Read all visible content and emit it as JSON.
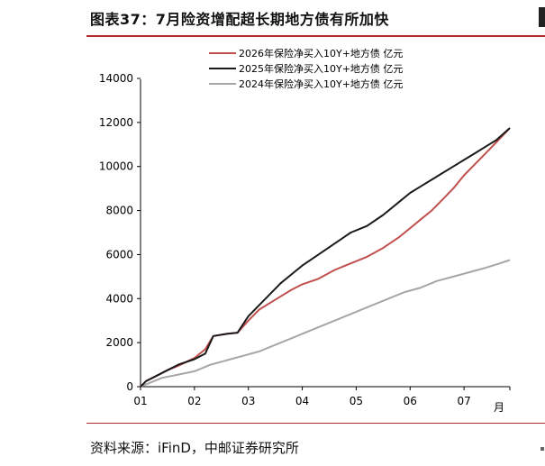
{
  "header": {
    "title": "图表37：7月险资增配超长期地方债有所加快"
  },
  "footer": {
    "source": "资料来源：iFinD，中邮证券研究所"
  },
  "chart_data": {
    "type": "line",
    "title": "",
    "xlabel": "月",
    "ylabel": "",
    "xlim": [
      1,
      7.85
    ],
    "ylim": [
      0,
      14000
    ],
    "xticks": [
      1,
      2,
      3,
      4,
      5,
      6,
      7
    ],
    "xtick_labels": [
      "01",
      "02",
      "03",
      "04",
      "05",
      "06",
      "07"
    ],
    "yticks": [
      0,
      2000,
      4000,
      6000,
      8000,
      10000,
      12000,
      14000
    ],
    "ytick_labels": [
      "0",
      "2000",
      "4000",
      "6000",
      "8000",
      "10000",
      "12000",
      "14000"
    ],
    "legend_position": "top-center",
    "grid": false,
    "series": [
      {
        "name": "2026年保险净买入10Y+地方债 亿元",
        "color": "#c0504d",
        "x": [
          1.0,
          1.1,
          1.3,
          1.5,
          1.7,
          2.0,
          2.2,
          2.35,
          2.6,
          2.8,
          3.0,
          3.2,
          3.4,
          3.6,
          3.8,
          4.0,
          4.3,
          4.6,
          4.9,
          5.2,
          5.5,
          5.8,
          6.0,
          6.2,
          6.4,
          6.6,
          6.8,
          7.0,
          7.2,
          7.4,
          7.6,
          7.85
        ],
        "y": [
          0,
          250,
          500,
          750,
          950,
          1300,
          1700,
          2300,
          2400,
          2450,
          3000,
          3500,
          3800,
          4100,
          4400,
          4650,
          4900,
          5300,
          5600,
          5900,
          6300,
          6800,
          7200,
          7600,
          8000,
          8500,
          9000,
          9600,
          10100,
          10600,
          11100,
          11750
        ]
      },
      {
        "name": "2025年保险净买入10Y+地方债 亿元",
        "color": "#1a1a1a",
        "x": [
          1.0,
          1.1,
          1.3,
          1.5,
          1.7,
          2.0,
          2.2,
          2.35,
          2.6,
          2.8,
          3.0,
          3.2,
          3.4,
          3.6,
          3.8,
          4.0,
          4.3,
          4.6,
          4.9,
          5.2,
          5.5,
          5.8,
          6.0,
          6.2,
          6.4,
          6.6,
          6.8,
          7.0,
          7.2,
          7.4,
          7.6,
          7.85
        ],
        "y": [
          0,
          250,
          500,
          750,
          1000,
          1250,
          1500,
          2300,
          2400,
          2450,
          3200,
          3700,
          4200,
          4700,
          5100,
          5500,
          6000,
          6500,
          7000,
          7300,
          7800,
          8400,
          8800,
          9100,
          9400,
          9700,
          10000,
          10300,
          10600,
          10900,
          11200,
          11750
        ]
      },
      {
        "name": "2024年保险净买入10Y+地方债 亿元",
        "color": "#a6a6a6",
        "x": [
          1.0,
          1.2,
          1.4,
          1.7,
          2.0,
          2.3,
          2.6,
          2.9,
          3.2,
          3.5,
          3.8,
          4.1,
          4.4,
          4.7,
          5.0,
          5.3,
          5.6,
          5.9,
          6.2,
          6.5,
          6.8,
          7.1,
          7.4,
          7.6,
          7.85
        ],
        "y": [
          0,
          200,
          400,
          550,
          700,
          1000,
          1200,
          1400,
          1600,
          1900,
          2200,
          2500,
          2800,
          3100,
          3400,
          3700,
          4000,
          4300,
          4500,
          4800,
          5000,
          5200,
          5400,
          5550,
          5750
        ]
      }
    ]
  }
}
